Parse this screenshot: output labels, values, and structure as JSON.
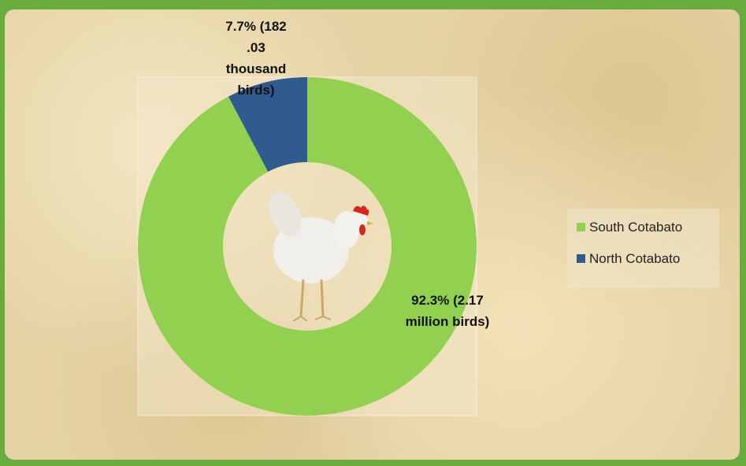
{
  "chart_data": {
    "type": "donut",
    "categories": [
      "South Cotabato",
      "North Cotabato"
    ],
    "values": [
      92.3,
      7.7
    ],
    "value_labels": [
      "92.3% (2.17 million birds)",
      "7.7% (182 .03 thousand birds)"
    ],
    "colors": [
      "#92d050",
      "#2f5b8f"
    ],
    "legend": "right"
  }
}
